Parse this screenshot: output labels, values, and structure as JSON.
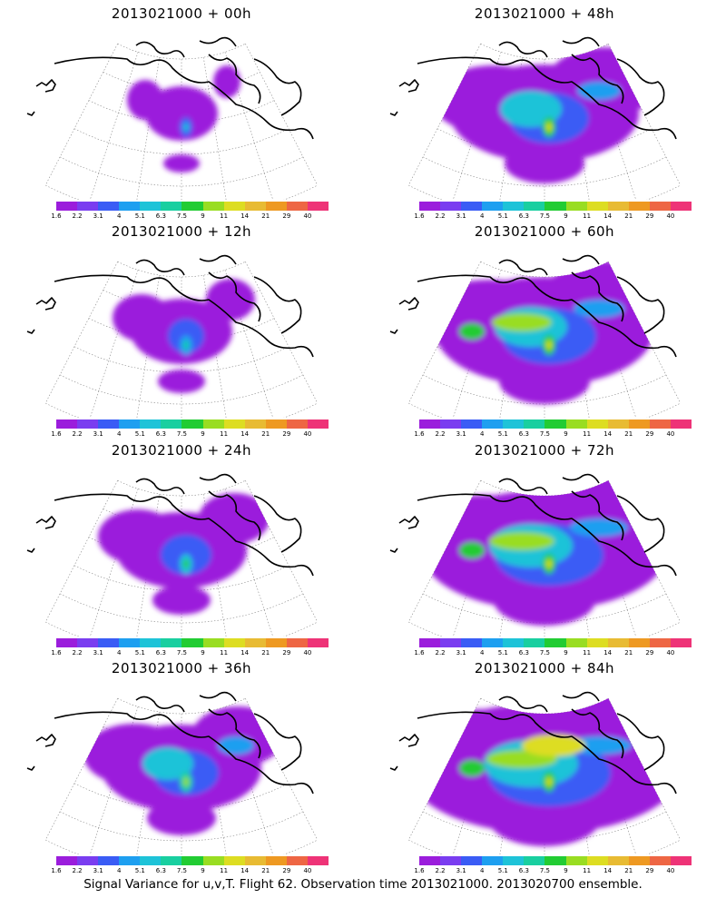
{
  "colorbar": {
    "colors": [
      "#9b1ddc",
      "#7a3df0",
      "#3a5cf5",
      "#1e9ff0",
      "#1ec3d8",
      "#19cfa0",
      "#22cc33",
      "#99dd22",
      "#dddd22",
      "#e8bb33",
      "#ee9922",
      "#ee6644",
      "#ee3377"
    ],
    "labels": [
      "1.6",
      "2.2",
      "3.1",
      "4",
      "5.1",
      "6.3",
      "7.5",
      "9",
      "11",
      "14",
      "21",
      "29",
      "40"
    ]
  },
  "panels": [
    {
      "title": "2013021000 + 00h",
      "intensity": 0
    },
    {
      "title": "2013021000 + 48h",
      "intensity": 4
    },
    {
      "title": "2013021000 + 12h",
      "intensity": 1
    },
    {
      "title": "2013021000 + 60h",
      "intensity": 5
    },
    {
      "title": "2013021000 + 24h",
      "intensity": 2
    },
    {
      "title": "2013021000 + 72h",
      "intensity": 6
    },
    {
      "title": "2013021000 + 36h",
      "intensity": 3
    },
    {
      "title": "2013021000 + 84h",
      "intensity": 7
    }
  ],
  "footer": "Signal Variance for u,v,T. Flight 62. Observation time 2013021000. 2013020700 ensemble."
}
